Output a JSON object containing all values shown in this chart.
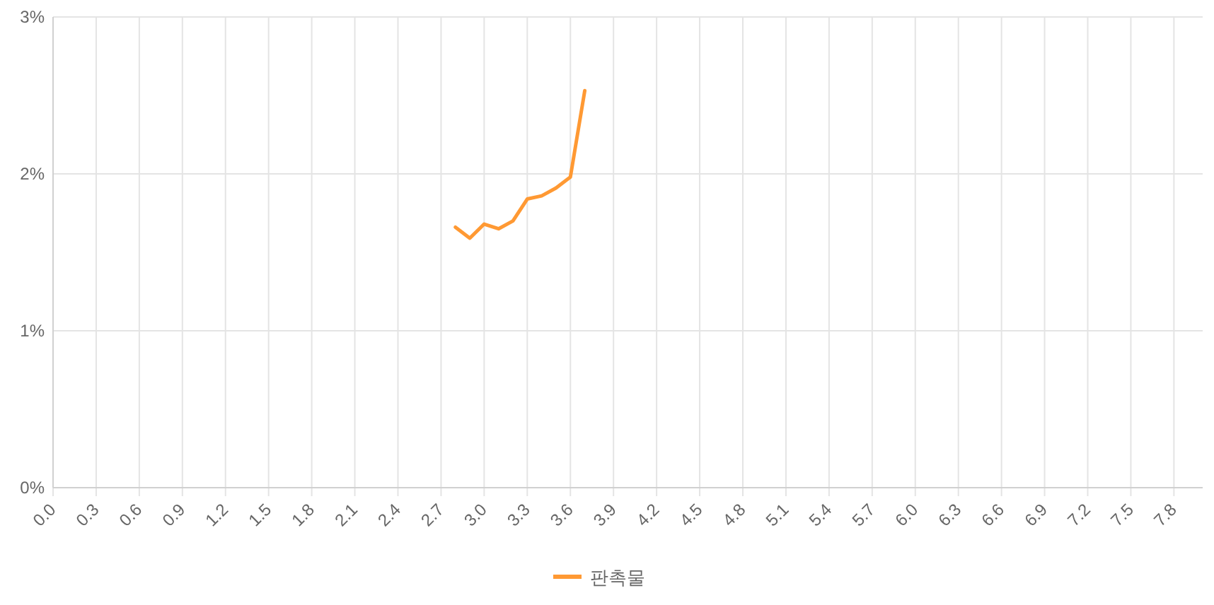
{
  "chart_data": {
    "type": "line",
    "x": [
      2.8,
      2.9,
      3.0,
      3.1,
      3.2,
      3.3,
      3.4,
      3.5,
      3.6,
      3.7
    ],
    "series": [
      {
        "name": "판촉물",
        "color": "#ff9933",
        "values": [
          1.66,
          1.59,
          1.68,
          1.65,
          1.7,
          1.84,
          1.86,
          1.91,
          1.98,
          2.53
        ]
      }
    ],
    "xlim": [
      0,
      8.0
    ],
    "xticks": [
      {
        "value": 0,
        "label": "0.0"
      },
      {
        "value": 0.3,
        "label": "0.3"
      },
      {
        "value": 0.6,
        "label": "0.6"
      },
      {
        "value": 0.9,
        "label": "0.9"
      },
      {
        "value": 1.2,
        "label": "1.2"
      },
      {
        "value": 1.5,
        "label": "1.5"
      },
      {
        "value": 1.8,
        "label": "1.8"
      },
      {
        "value": 2.1,
        "label": "2.1"
      },
      {
        "value": 2.4,
        "label": "2.4"
      },
      {
        "value": 2.7,
        "label": "2.7"
      },
      {
        "value": 3.0,
        "label": "3.0"
      },
      {
        "value": 3.3,
        "label": "3.3"
      },
      {
        "value": 3.6,
        "label": "3.6"
      },
      {
        "value": 3.9,
        "label": "3.9"
      },
      {
        "value": 4.2,
        "label": "4.2"
      },
      {
        "value": 4.5,
        "label": "4.5"
      },
      {
        "value": 4.8,
        "label": "4.8"
      },
      {
        "value": 5.1,
        "label": "5.1"
      },
      {
        "value": 5.4,
        "label": "5.4"
      },
      {
        "value": 5.7,
        "label": "5.7"
      },
      {
        "value": 6.0,
        "label": "6.0"
      },
      {
        "value": 6.3,
        "label": "6.3"
      },
      {
        "value": 6.6,
        "label": "6.6"
      },
      {
        "value": 6.9,
        "label": "6.9"
      },
      {
        "value": 7.2,
        "label": "7.2"
      },
      {
        "value": 7.5,
        "label": "7.5"
      },
      {
        "value": 7.8,
        "label": "7.8"
      }
    ],
    "ylim": [
      0,
      3
    ],
    "yticks": [
      {
        "value": 0,
        "label": "0%"
      },
      {
        "value": 1,
        "label": "1%"
      },
      {
        "value": 2,
        "label": "2%"
      },
      {
        "value": 3,
        "label": "3%"
      }
    ],
    "grid": true,
    "legend": "bottom",
    "line_style": "solid"
  }
}
